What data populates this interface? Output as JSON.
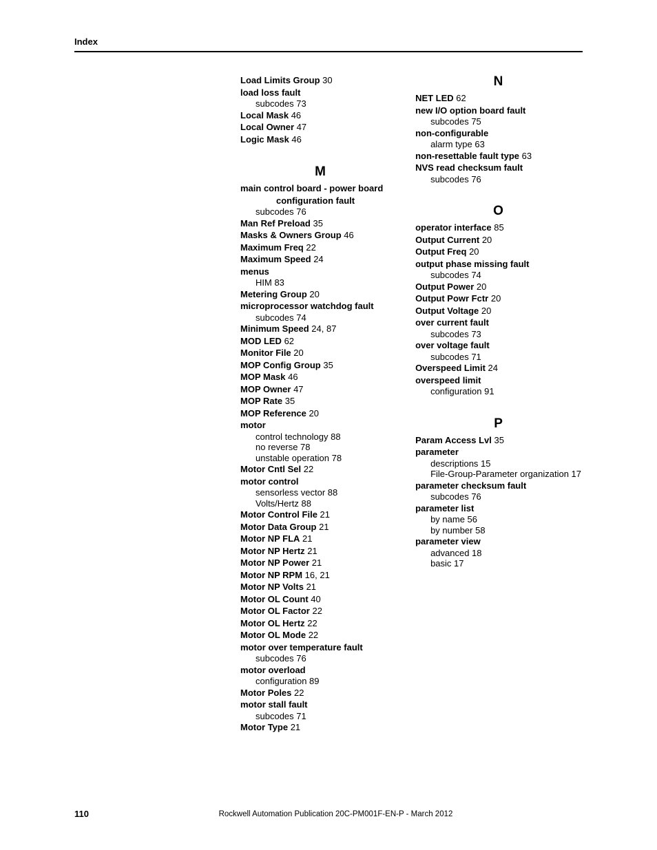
{
  "header": {
    "title": "Index"
  },
  "footer": {
    "page_number": "110",
    "publication": "Rockwell Automation Publication 20C-PM001F-EN-P - March 2012"
  },
  "left": {
    "pre": [
      {
        "type": "entry",
        "term": "Load Limits Group",
        "pages": " 30"
      },
      {
        "type": "entry",
        "term": "load loss fault",
        "pages": ""
      },
      {
        "type": "sub",
        "text": "subcodes 73"
      },
      {
        "type": "entry",
        "term": "Local Mask",
        "pages": " 46"
      },
      {
        "type": "entry",
        "term": "Local Owner",
        "pages": " 47"
      },
      {
        "type": "entry",
        "term": "Logic Mask",
        "pages": " 46"
      }
    ],
    "M": [
      {
        "type": "entry",
        "term": "main control board - power board",
        "pages": ""
      },
      {
        "type": "cont",
        "text": "configuration fault"
      },
      {
        "type": "sub",
        "text": "subcodes 76"
      },
      {
        "type": "entry",
        "term": "Man Ref Preload",
        "pages": " 35"
      },
      {
        "type": "entry",
        "term": "Masks & Owners Group",
        "pages": " 46"
      },
      {
        "type": "entry",
        "term": "Maximum Freq",
        "pages": " 22"
      },
      {
        "type": "entry",
        "term": "Maximum Speed",
        "pages": " 24"
      },
      {
        "type": "entry",
        "term": "menus",
        "pages": ""
      },
      {
        "type": "sub",
        "text": "HIM 83"
      },
      {
        "type": "entry",
        "term": "Metering Group",
        "pages": " 20"
      },
      {
        "type": "entry",
        "term": "microprocessor watchdog fault",
        "pages": ""
      },
      {
        "type": "sub",
        "text": "subcodes 74"
      },
      {
        "type": "entry",
        "term": "Minimum Speed",
        "pages": " 24, 87"
      },
      {
        "type": "entry",
        "term": "MOD LED",
        "pages": " 62"
      },
      {
        "type": "entry",
        "term": "Monitor File",
        "pages": " 20"
      },
      {
        "type": "entry",
        "term": "MOP Config Group",
        "pages": " 35"
      },
      {
        "type": "entry",
        "term": "MOP Mask",
        "pages": " 46"
      },
      {
        "type": "entry",
        "term": "MOP Owner",
        "pages": " 47"
      },
      {
        "type": "entry",
        "term": "MOP Rate",
        "pages": " 35"
      },
      {
        "type": "entry",
        "term": "MOP Reference",
        "pages": " 20"
      },
      {
        "type": "entry",
        "term": "motor",
        "pages": ""
      },
      {
        "type": "sub",
        "text": "control technology 88"
      },
      {
        "type": "sub",
        "text": "no reverse 78"
      },
      {
        "type": "sub",
        "text": "unstable operation 78"
      },
      {
        "type": "entry",
        "term": "Motor Cntl Sel",
        "pages": " 22"
      },
      {
        "type": "entry",
        "term": "motor control",
        "pages": ""
      },
      {
        "type": "sub",
        "text": "sensorless vector 88"
      },
      {
        "type": "sub",
        "text": "Volts/Hertz 88"
      },
      {
        "type": "entry",
        "term": "Motor Control File",
        "pages": " 21"
      },
      {
        "type": "entry",
        "term": "Motor Data Group",
        "pages": " 21"
      },
      {
        "type": "entry",
        "term": "Motor NP FLA",
        "pages": " 21"
      },
      {
        "type": "entry",
        "term": "Motor NP Hertz",
        "pages": " 21"
      },
      {
        "type": "entry",
        "term": "Motor NP Power",
        "pages": " 21"
      },
      {
        "type": "entry",
        "term": "Motor NP RPM",
        "pages": " 16, 21"
      },
      {
        "type": "entry",
        "term": "Motor NP Volts",
        "pages": " 21"
      },
      {
        "type": "entry",
        "term": "Motor OL Count",
        "pages": " 40"
      },
      {
        "type": "entry",
        "term": "Motor OL Factor",
        "pages": " 22"
      },
      {
        "type": "entry",
        "term": "Motor OL Hertz",
        "pages": " 22"
      },
      {
        "type": "entry",
        "term": "Motor OL Mode",
        "pages": " 22"
      },
      {
        "type": "entry",
        "term": "motor over temperature fault",
        "pages": ""
      },
      {
        "type": "sub",
        "text": "subcodes 76"
      },
      {
        "type": "entry",
        "term": "motor overload",
        "pages": ""
      },
      {
        "type": "sub",
        "text": "configuration 89"
      },
      {
        "type": "entry",
        "term": "Motor Poles",
        "pages": " 22"
      },
      {
        "type": "entry",
        "term": "motor stall fault",
        "pages": ""
      },
      {
        "type": "sub",
        "text": "subcodes 71"
      },
      {
        "type": "entry",
        "term": "Motor Type",
        "pages": " 21"
      }
    ]
  },
  "right": {
    "N": [
      {
        "type": "entry",
        "term": "NET LED",
        "pages": " 62"
      },
      {
        "type": "entry",
        "term": "new I/O option board fault",
        "pages": ""
      },
      {
        "type": "sub",
        "text": "subcodes 75"
      },
      {
        "type": "entry",
        "term": "non-configurable",
        "pages": ""
      },
      {
        "type": "sub",
        "text": "alarm type 63"
      },
      {
        "type": "entry",
        "term": "non-resettable fault type",
        "pages": " 63"
      },
      {
        "type": "entry",
        "term": "NVS read checksum fault",
        "pages": ""
      },
      {
        "type": "sub",
        "text": "subcodes 76"
      }
    ],
    "O": [
      {
        "type": "entry",
        "term": "operator interface",
        "pages": " 85"
      },
      {
        "type": "entry",
        "term": "Output Current",
        "pages": " 20"
      },
      {
        "type": "entry",
        "term": "Output Freq",
        "pages": " 20"
      },
      {
        "type": "entry",
        "term": "output phase missing fault",
        "pages": ""
      },
      {
        "type": "sub",
        "text": "subcodes 74"
      },
      {
        "type": "entry",
        "term": "Output Power",
        "pages": " 20"
      },
      {
        "type": "entry",
        "term": "Output Powr Fctr",
        "pages": " 20"
      },
      {
        "type": "entry",
        "term": "Output Voltage",
        "pages": " 20"
      },
      {
        "type": "entry",
        "term": "over current fault",
        "pages": ""
      },
      {
        "type": "sub",
        "text": "subcodes 73"
      },
      {
        "type": "entry",
        "term": "over voltage fault",
        "pages": ""
      },
      {
        "type": "sub",
        "text": "subcodes 71"
      },
      {
        "type": "entry",
        "term": "Overspeed Limit",
        "pages": " 24"
      },
      {
        "type": "entry",
        "term": "overspeed limit",
        "pages": ""
      },
      {
        "type": "sub",
        "text": "configuration 91"
      }
    ],
    "P": [
      {
        "type": "entry",
        "term": "Param Access Lvl",
        "pages": " 35"
      },
      {
        "type": "entry",
        "term": "parameter",
        "pages": ""
      },
      {
        "type": "sub",
        "text": "descriptions 15"
      },
      {
        "type": "sub",
        "text": "File-Group-Parameter organization 17"
      },
      {
        "type": "entry",
        "term": "parameter checksum fault",
        "pages": ""
      },
      {
        "type": "sub",
        "text": "subcodes 76"
      },
      {
        "type": "entry",
        "term": "parameter list",
        "pages": ""
      },
      {
        "type": "sub",
        "text": "by name 56"
      },
      {
        "type": "sub",
        "text": "by number 58"
      },
      {
        "type": "entry",
        "term": "parameter view",
        "pages": ""
      },
      {
        "type": "sub",
        "text": "advanced 18"
      },
      {
        "type": "sub",
        "text": "basic 17"
      }
    ]
  },
  "letters": {
    "M": "M",
    "N": "N",
    "O": "O",
    "P": "P"
  }
}
